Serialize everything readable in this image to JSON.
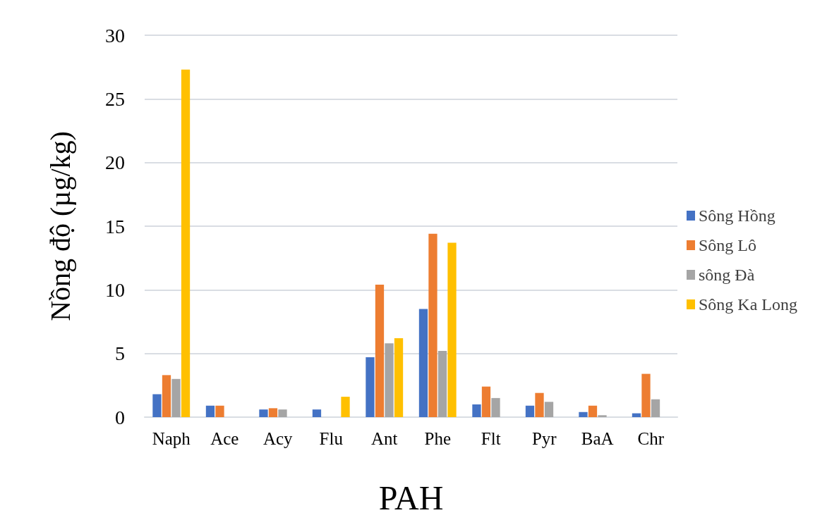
{
  "chart_data": {
    "type": "bar",
    "xlabel": "PAH",
    "ylabel": "Nồng độ (µg/kg)",
    "categories": [
      "Naph",
      "Ace",
      "Acy",
      "Flu",
      "Ant",
      "Phe",
      "Flt",
      "Pyr",
      "BaA",
      "Chr"
    ],
    "series": [
      {
        "name": "Sông Hồng",
        "color": "#4472c4",
        "values": [
          1.8,
          0.9,
          0.6,
          0.6,
          4.7,
          8.5,
          1.0,
          0.9,
          0.4,
          0.3
        ]
      },
      {
        "name": "Sông Lô",
        "color": "#ed7d31",
        "values": [
          3.3,
          0.9,
          0.7,
          null,
          10.4,
          14.4,
          2.4,
          1.9,
          0.9,
          3.4
        ]
      },
      {
        "name": "sông Đà",
        "color": "#a5a5a5",
        "values": [
          3.0,
          null,
          0.6,
          null,
          5.8,
          5.2,
          1.5,
          1.2,
          0.15,
          1.4
        ]
      },
      {
        "name": "Sông Ka Long",
        "color": "#ffc000",
        "values": [
          27.3,
          null,
          null,
          1.6,
          6.2,
          13.7,
          null,
          null,
          null,
          null
        ]
      }
    ],
    "ylim": [
      0,
      30
    ],
    "yticks": [
      0,
      5,
      10,
      15,
      20,
      25,
      30
    ],
    "grid": "y",
    "legend": "right"
  }
}
